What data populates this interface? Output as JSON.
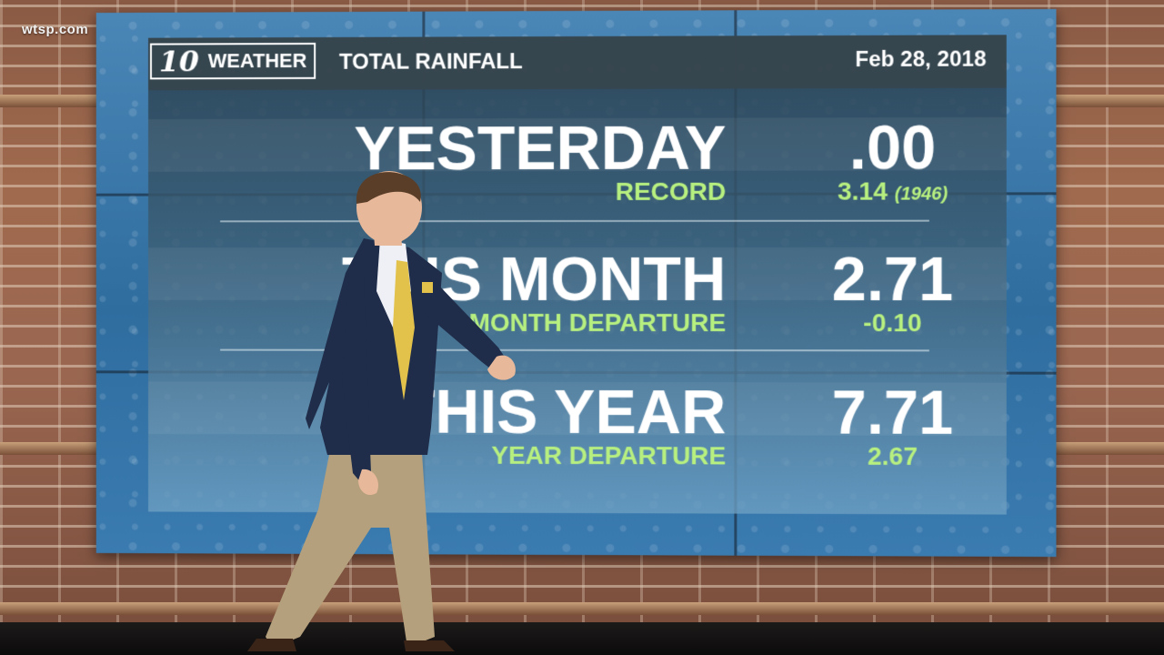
{
  "watermark": "wtsp.com",
  "graphic": {
    "logo_number": "10",
    "logo_word": "WEATHER",
    "title": "TOTAL RAINFALL",
    "date": "Feb 28, 2018",
    "rows": [
      {
        "label": "YESTERDAY",
        "value": ".00",
        "sublabel": "RECORD",
        "subvalue": "3.14",
        "subvalue_note": "(1946)"
      },
      {
        "label": "THIS MONTH",
        "value": "2.71",
        "sublabel": "MONTH DEPARTURE",
        "subvalue": "-0.10",
        "subvalue_note": ""
      },
      {
        "label": "THIS YEAR",
        "value": "7.71",
        "sublabel": "YEAR DEPARTURE",
        "subvalue": "2.67",
        "subvalue_note": ""
      }
    ]
  },
  "colors": {
    "accent_green": "#b8f080",
    "screen_blue": "#2f6d9f",
    "header_gray": "#374650"
  }
}
